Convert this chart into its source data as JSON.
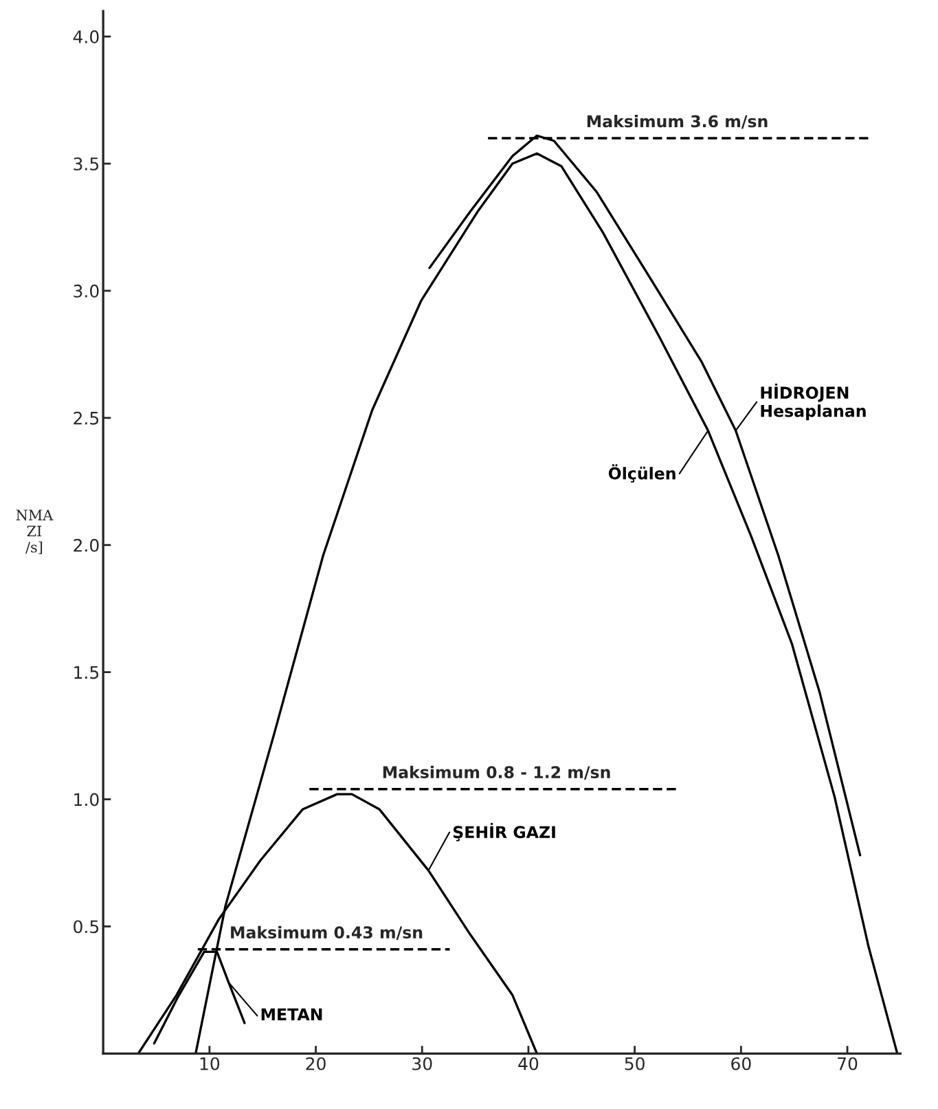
{
  "chart_data": {
    "type": "line",
    "ylabel": "NMA\nZI\n/s]",
    "xlim": [
      0,
      75
    ],
    "ylim": [
      0,
      4.1
    ],
    "xticks": [
      10,
      20,
      30,
      40,
      50,
      60,
      70
    ],
    "yticks": [
      0.5,
      {
        "value": 1,
        "label": "1.0"
      },
      1.5,
      {
        "value": 2,
        "label": "2.0"
      },
      2.5,
      {
        "value": 3,
        "label": "3.0"
      },
      3.5,
      {
        "value": 4,
        "label": "4.0"
      }
    ],
    "grid": false,
    "legend": false,
    "line_style": "solid",
    "marker": "none",
    "series": [
      {
        "name": "HİDROJEN\nHesaplanan",
        "color": "#000000",
        "x": [
          30.7,
          34.5,
          38.5,
          40.8,
          42.4,
          46.4,
          51.6,
          56.3,
          59.5,
          63.5,
          67.4,
          71.2
        ],
        "values": [
          3.09,
          3.31,
          3.53,
          3.61,
          3.59,
          3.39,
          3.04,
          2.72,
          2.45,
          1.96,
          1.42,
          0.78
        ]
      },
      {
        "name": "Ölçülen",
        "color": "#000000",
        "x": [
          8.7,
          11.5,
          16.1,
          20.7,
          25.3,
          29.9,
          35.2,
          38.5,
          40.8,
          43.1,
          47.0,
          52.3,
          56.9,
          60.9,
          64.8,
          68.8,
          72.0,
          74.7
        ],
        "values": [
          0,
          0.58,
          1.26,
          1.96,
          2.53,
          2.96,
          3.31,
          3.5,
          3.54,
          3.49,
          3.23,
          2.82,
          2.45,
          2.04,
          1.61,
          1.01,
          0.42,
          0
        ]
      },
      {
        "name": "ŞEHİR GAZI",
        "color": "#000000",
        "x": [
          3.3,
          6.9,
          10.9,
          14.8,
          18.75,
          22.0,
          23.4,
          26.0,
          30.6,
          34.5,
          38.5,
          40.8
        ],
        "values": [
          0,
          0.23,
          0.53,
          0.76,
          0.96,
          1.02,
          1.02,
          0.96,
          0.72,
          0.47,
          0.23,
          0
        ]
      },
      {
        "name": "METAN",
        "color": "#000000",
        "x": [
          4.8,
          7.0,
          9.5,
          10.7,
          11.8,
          13.3
        ],
        "values": [
          0.04,
          0.22,
          0.4,
          0.4,
          0.28,
          0.12
        ]
      },
      {
        "color": "#000000",
        "line_style": "dashed",
        "x": [
          36.2,
          72.2
        ],
        "values": [
          3.6,
          3.6
        ]
      },
      {
        "color": "#000000",
        "line_style": "dashed",
        "x": [
          19.4,
          54.3
        ],
        "values": [
          1.04,
          1.04
        ]
      },
      {
        "color": "#000000",
        "line_style": "dashed",
        "x": [
          8.9,
          32.6
        ],
        "values": [
          0.41,
          0.41
        ]
      }
    ],
    "annotations": [
      {
        "text": "Maksimum 3.6 m/sn",
        "x": 54,
        "y": 3.6
      },
      {
        "text": "Maksimum 0.8 - 1.2 m/sn",
        "x": 37,
        "y": 1.04
      },
      {
        "text": "Maksimum 0.43 m/sn",
        "x": 21,
        "y": 0.41
      }
    ]
  }
}
